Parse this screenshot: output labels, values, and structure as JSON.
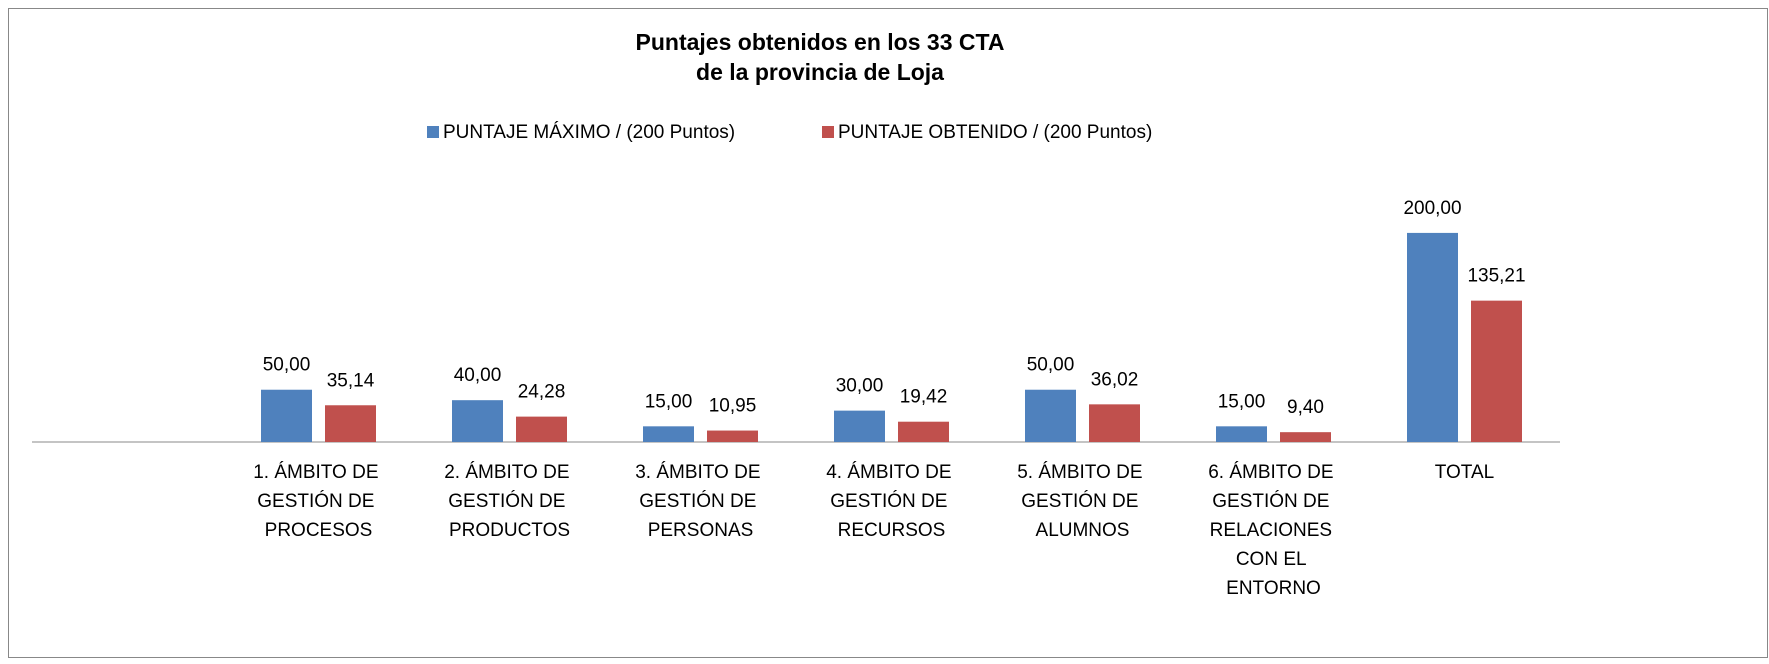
{
  "chart_data": {
    "type": "bar",
    "title": [
      "Puntajes obtenidos en los 33 CTA",
      "de la provincia de Loja"
    ],
    "categories": [
      null,
      "1. ÁMBITO DE GESTIÓN DE PROCESOS",
      "2. ÁMBITO DE GESTIÓN DE PRODUCTOS",
      "3. ÁMBITO DE GESTIÓN DE PERSONAS",
      "4. ÁMBITO DE GESTIÓN DE RECURSOS",
      "5. ÁMBITO DE GESTIÓN DE ALUMNOS",
      "6. ÁMBITO DE GESTIÓN DE RELACIONES CON EL ENTORNO",
      "TOTAL"
    ],
    "series": [
      {
        "name": "PUNTAJE MÁXIMO / (200 Puntos)",
        "color": "#4f81bd",
        "values": [
          null,
          50,
          40,
          15,
          30,
          50,
          15,
          200
        ],
        "value_labels": [
          null,
          "50,00",
          "40,00",
          "15,00",
          "30,00",
          "50,00",
          "15,00",
          "200,00"
        ]
      },
      {
        "name": "PUNTAJE OBTENIDO / (200 Puntos)",
        "color": "#c0504d",
        "values": [
          null,
          35.14,
          24.28,
          10.95,
          19.42,
          36.02,
          9.4,
          135.21
        ],
        "value_labels": [
          null,
          "35,14",
          "24,28",
          "10,95",
          "19,42",
          "36,02",
          "9,40",
          "135,21"
        ]
      }
    ],
    "ylim": [
      0,
      220
    ],
    "legend": "top"
  }
}
